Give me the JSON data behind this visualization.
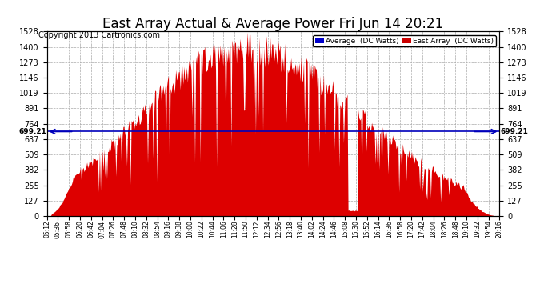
{
  "title": "East Array Actual & Average Power Fri Jun 14 20:21",
  "copyright": "Copyright 2013 Cartronics.com",
  "legend_labels": [
    "Average  (DC Watts)",
    "East Array  (DC Watts)"
  ],
  "legend_colors": [
    "#0000cc",
    "#cc0000"
  ],
  "y_ticks": [
    0.0,
    127.3,
    254.6,
    382.0,
    509.3,
    636.6,
    763.9,
    891.2,
    1018.6,
    1145.9,
    1273.2,
    1400.5,
    1527.8
  ],
  "y_max": 1527.8,
  "y_min": 0.0,
  "average_line_y": 699.21,
  "average_line_label": "699.21",
  "fill_color": "#dd0000",
  "avg_line_color": "#0000bb",
  "background_color": "#ffffff",
  "plot_bg_color": "#ffffff",
  "grid_color": "#aaaaaa",
  "title_fontsize": 12,
  "copyright_fontsize": 7,
  "tick_fontsize": 7,
  "num_points": 500,
  "peak_value": 1527.8
}
